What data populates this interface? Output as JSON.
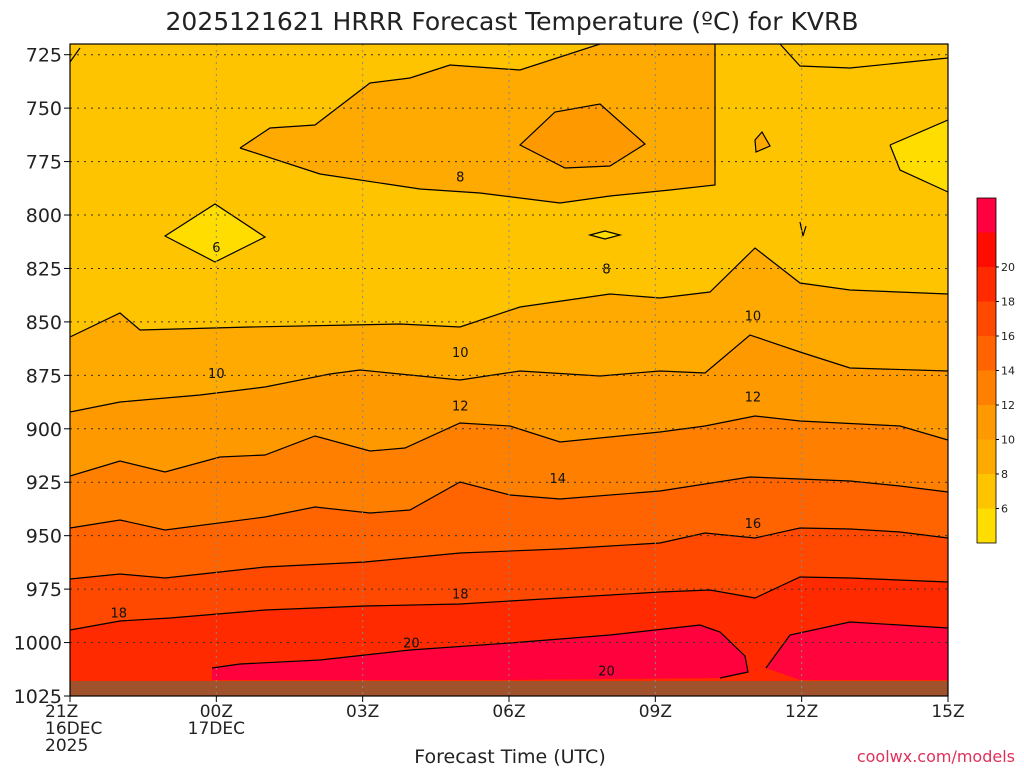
{
  "chart_data": {
    "type": "heatmap",
    "title": "2025121621 HRRR Forecast Temperature (ºC) for KVRB",
    "xlabel": "Forecast Time (UTC)",
    "ylabel": "",
    "x_ticks": [
      {
        "hour": 0,
        "lines": [
          "21Z",
          "16DEC",
          "2025"
        ]
      },
      {
        "hour": 3,
        "lines": [
          "00Z",
          "17DEC"
        ]
      },
      {
        "hour": 6,
        "lines": [
          "03Z"
        ]
      },
      {
        "hour": 9,
        "lines": [
          "06Z"
        ]
      },
      {
        "hour": 12,
        "lines": [
          "09Z"
        ]
      },
      {
        "hour": 15,
        "lines": [
          "12Z"
        ]
      },
      {
        "hour": 18,
        "lines": [
          "15Z"
        ]
      }
    ],
    "xlim": [
      0,
      18
    ],
    "y_ticks": [
      725,
      750,
      775,
      800,
      825,
      850,
      875,
      900,
      925,
      950,
      975,
      1000,
      1025
    ],
    "ylim": [
      720,
      1025
    ],
    "grid": true,
    "colorbar": {
      "labels": [
        "6",
        "8",
        "10",
        "12",
        "14",
        "16",
        "18",
        "20"
      ],
      "colors": [
        "#ffdd00",
        "#ffc400",
        "#ffaa00",
        "#ff9900",
        "#ff8000",
        "#ff6400",
        "#ff4800",
        "#ff2a00",
        "#ff0c00",
        "#ff0040"
      ]
    },
    "contour_labels": [
      {
        "text": "8",
        "hour": 8.0,
        "p": 782
      },
      {
        "text": "6",
        "hour": 3.0,
        "p": 815
      },
      {
        "text": "8",
        "hour": 11.0,
        "p": 825
      },
      {
        "text": "10",
        "hour": 14.0,
        "p": 847
      },
      {
        "text": "10",
        "hour": 3.0,
        "p": 874
      },
      {
        "text": "10",
        "hour": 8.0,
        "p": 864
      },
      {
        "text": "12",
        "hour": 8.0,
        "p": 889
      },
      {
        "text": "12",
        "hour": 14.0,
        "p": 885
      },
      {
        "text": "14",
        "hour": 10.0,
        "p": 923
      },
      {
        "text": "16",
        "hour": 14.0,
        "p": 944
      },
      {
        "text": "18",
        "hour": 1.0,
        "p": 986
      },
      {
        "text": "18",
        "hour": 8.0,
        "p": 977
      },
      {
        "text": "20",
        "hour": 7.0,
        "p": 1000
      },
      {
        "text": "20",
        "hour": 11.0,
        "p": 1013
      }
    ],
    "credit": "coolwx.com/models"
  }
}
